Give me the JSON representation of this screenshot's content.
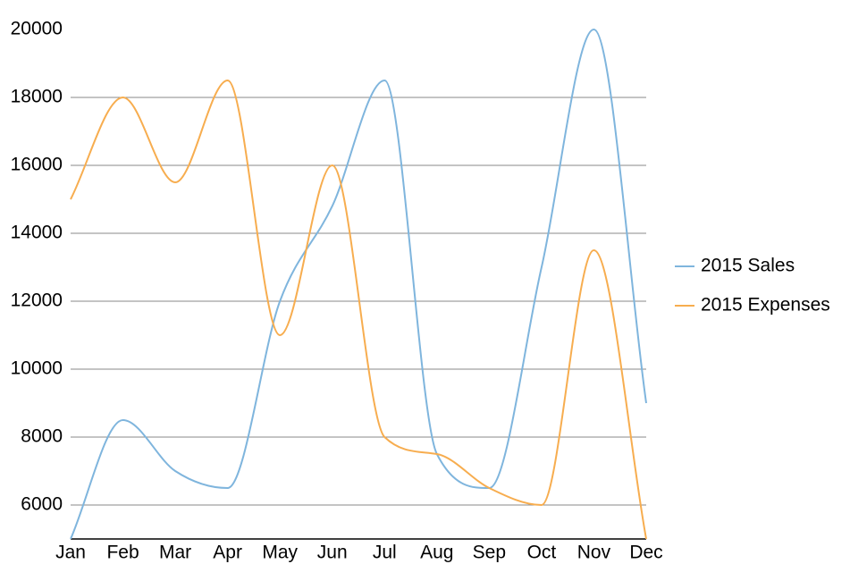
{
  "chart_data": {
    "type": "line",
    "categories": [
      "Jan",
      "Feb",
      "Mar",
      "Apr",
      "May",
      "Jun",
      "Jul",
      "Aug",
      "Sep",
      "Oct",
      "Nov",
      "Dec"
    ],
    "series": [
      {
        "name": "2015 Sales",
        "color": "#7fb5dd",
        "values": [
          5000,
          8500,
          7000,
          6500,
          12000,
          14800,
          18500,
          7500,
          6500,
          13000,
          20000,
          9000
        ]
      },
      {
        "name": "2015 Expenses",
        "color": "#f7ad4f",
        "values": [
          15000,
          18000,
          15500,
          18500,
          11000,
          16000,
          8000,
          7500,
          6500,
          6000,
          13500,
          5000
        ]
      }
    ],
    "ylim": [
      5000,
      20000
    ],
    "yticks": [
      6000,
      8000,
      10000,
      12000,
      14000,
      16000,
      18000,
      20000
    ],
    "grid": true,
    "legend": "right"
  }
}
